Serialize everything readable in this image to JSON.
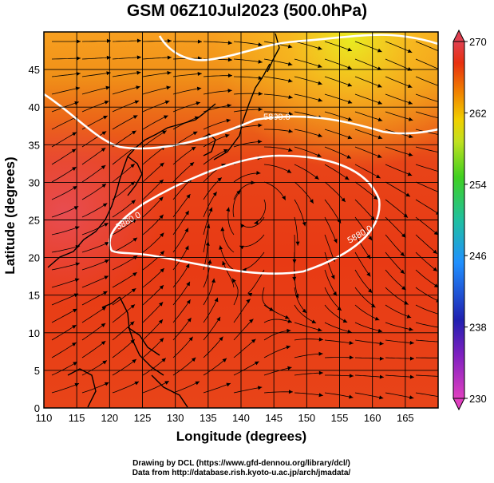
{
  "title": "GSM 06Z10Jul2023 (500.0hPa)",
  "x_axis": {
    "label": "Longitude (degrees)",
    "ticks": [
      110,
      115,
      120,
      125,
      130,
      135,
      140,
      145,
      150,
      155,
      160,
      165
    ],
    "range": [
      110,
      170
    ]
  },
  "y_axis": {
    "label": "Latitude  (degrees)",
    "ticks": [
      0,
      5,
      10,
      15,
      20,
      25,
      30,
      35,
      40,
      45
    ],
    "range": [
      0,
      50
    ]
  },
  "colorbar": {
    "min": 230,
    "max": 270,
    "tick_labels": [
      230,
      238,
      246,
      254,
      262,
      270
    ],
    "palette": [
      "#e040c0",
      "#2020b0",
      "#2090ff",
      "#20c0a0",
      "#40d020",
      "#c0e020",
      "#f0d000",
      "#f08000",
      "#e83010",
      "#e04050"
    ]
  },
  "contours": [
    {
      "label": "5800.0",
      "value": 5800
    },
    {
      "label": "5880.0",
      "value": 5880
    },
    {
      "label": "5880.0",
      "value": 5880
    }
  ],
  "credits": {
    "line1": "Drawing by DCL (https://www.gfd-dennou.org/library/dcl/)",
    "line2": "Data from http://database.rish.kyoto-u.ac.jp/arch/jmadata/"
  }
}
